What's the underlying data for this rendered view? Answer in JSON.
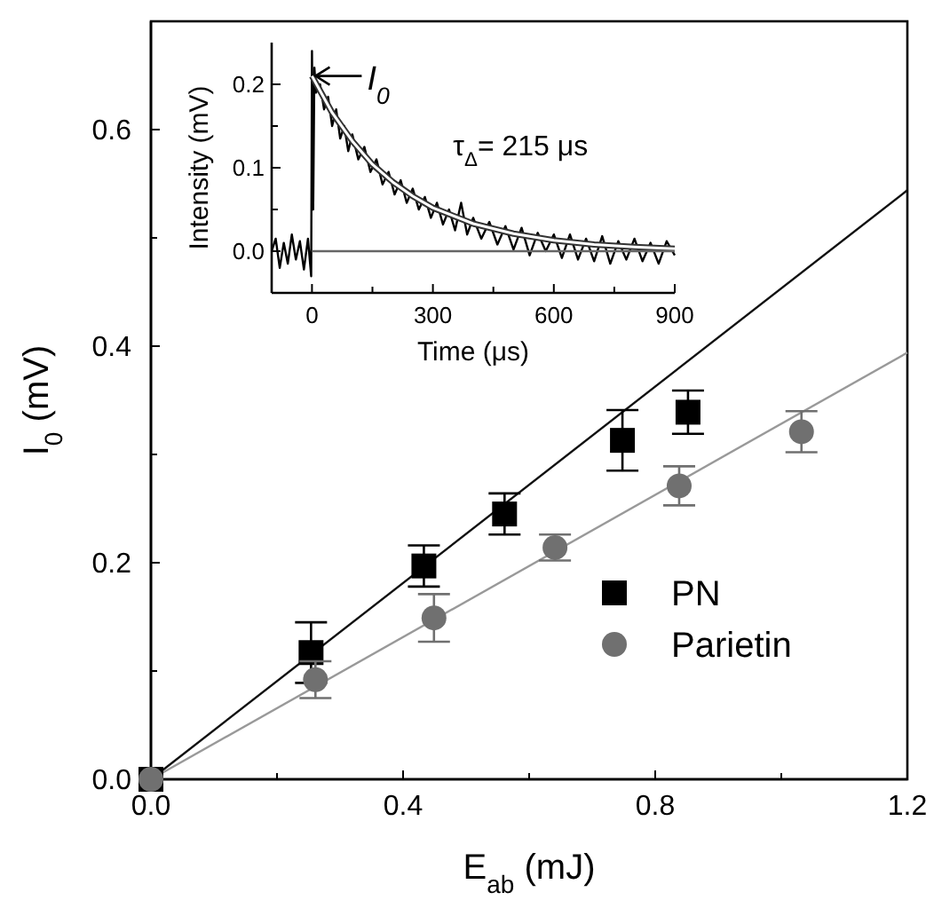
{
  "chart_data": [
    {
      "type": "scatter",
      "xlabel": "E$_{ab}$ (mJ)",
      "ylabel": "I$_{0}$ (mV)",
      "xlim": [
        0,
        1.2
      ],
      "ylim": [
        0,
        0.7
      ],
      "xticks": [
        {
          "value": 0,
          "label": "0.0"
        },
        {
          "value": 0.2,
          "label": null
        },
        0.4,
        {
          "value": 0.6,
          "label": null
        },
        0.8,
        {
          "value": 1.0,
          "label": null
        },
        1.2
      ],
      "yticks": [
        {
          "value": 0,
          "label": "0.0"
        },
        {
          "value": 0.1,
          "label": null
        },
        0.2,
        {
          "value": 0.3,
          "label": null
        },
        0.4,
        {
          "value": 0.5,
          "label": null
        },
        0.6
      ],
      "grid": false,
      "legend": "bottom right",
      "series": [
        {
          "name": "PN",
          "marker": "square",
          "color": "#000000",
          "x": [
            0,
            0.254,
            0.433,
            0.561,
            0.748,
            0.852
          ],
          "values": [
            0,
            0.117,
            0.197,
            0.245,
            0.313,
            0.339
          ],
          "errors": [
            null,
            0.028,
            0.019,
            0.019,
            0.028,
            0.02
          ]
        },
        {
          "name": "Parietin",
          "marker": "circle",
          "color": "#707070",
          "x": [
            0,
            0.261,
            0.449,
            0.641,
            0.838,
            1.032
          ],
          "values": [
            0,
            0.092,
            0.149,
            0.214,
            0.271,
            0.321
          ],
          "errors": [
            null,
            0.017,
            0.022,
            0.012,
            0.018,
            0.019
          ]
        },
        {
          "type": "line",
          "color": "#111111",
          "x": [
            0,
            1.2
          ],
          "values": [
            0,
            0.544
          ]
        },
        {
          "type": "line",
          "color": "#999999",
          "x": [
            0,
            1.2
          ],
          "values": [
            0,
            0.394
          ]
        }
      ]
    },
    {
      "type": "line",
      "xlabel": "Time (μs)",
      "ylabel": "Intensity (mV)",
      "xlim": [
        -100,
        900
      ],
      "ylim": [
        -0.05,
        0.25
      ],
      "xticks": [
        0,
        {
          "value": 150,
          "label": null
        },
        300,
        {
          "value": 450,
          "label": null
        },
        600,
        {
          "value": 750,
          "label": null
        },
        900
      ],
      "yticks": [
        {
          "value": 0,
          "label": "0.0"
        },
        {
          "value": 0.05,
          "label": null
        },
        0.1,
        {
          "value": 0.15,
          "label": null
        },
        0.2
      ],
      "annotations": [
        {
          "text": "I$_{0}$",
          "x": 0,
          "y": 0.21
        },
        "τ$_{Δ}$= 215 μs"
      ],
      "series": [
        {
          "color": "#000000",
          "x": [
            -100,
            -90,
            -80,
            -70,
            -60,
            -50,
            -40,
            -30,
            -20,
            -10,
            -2,
            0,
            3,
            6,
            10,
            20,
            30,
            40,
            50,
            60,
            70,
            80,
            90,
            100,
            115,
            130,
            145,
            160,
            175,
            190,
            205,
            220,
            235,
            250,
            265,
            280,
            295,
            310,
            325,
            340,
            355,
            370,
            385,
            400,
            420,
            440,
            460,
            480,
            500,
            520,
            540,
            560,
            580,
            600,
            620,
            640,
            660,
            680,
            700,
            720,
            740,
            760,
            780,
            800,
            820,
            840,
            860,
            880,
            900
          ],
          "values": [
            0,
            0.015,
            -0.02,
            0.01,
            -0.015,
            0.02,
            -0.01,
            0.012,
            -0.022,
            0.015,
            -0.03,
            0.24,
            0.05,
            0.22,
            0.19,
            0.2,
            0.17,
            0.185,
            0.15,
            0.17,
            0.135,
            0.15,
            0.12,
            0.14,
            0.11,
            0.125,
            0.095,
            0.11,
            0.08,
            0.095,
            0.068,
            0.085,
            0.058,
            0.075,
            0.05,
            0.065,
            0.04,
            0.058,
            0.032,
            0.05,
            0.025,
            0.058,
            0.02,
            0.04,
            0.015,
            0.035,
            0.008,
            0.03,
            0.002,
            0.028,
            -0.005,
            0.022,
            0,
            0.02,
            -0.008,
            0.02,
            -0.01,
            0.015,
            -0.012,
            0.018,
            -0.015,
            0.012,
            -0.01,
            0.015,
            -0.012,
            0.01,
            -0.015,
            0.012,
            -0.005
          ]
        },
        {
          "color": "#ffffff",
          "x": [
            0,
            50,
            100,
            150,
            200,
            250,
            300,
            400,
            500,
            600,
            700,
            800,
            900
          ],
          "values": [
            0.21,
            0.166,
            0.132,
            0.104,
            0.083,
            0.066,
            0.052,
            0.033,
            0.021,
            0.013,
            0.008,
            0.005,
            0.003
          ]
        },
        {
          "color": "#666666",
          "x": [
            0,
            900
          ],
          "values": [
            0,
            0
          ]
        }
      ]
    }
  ]
}
